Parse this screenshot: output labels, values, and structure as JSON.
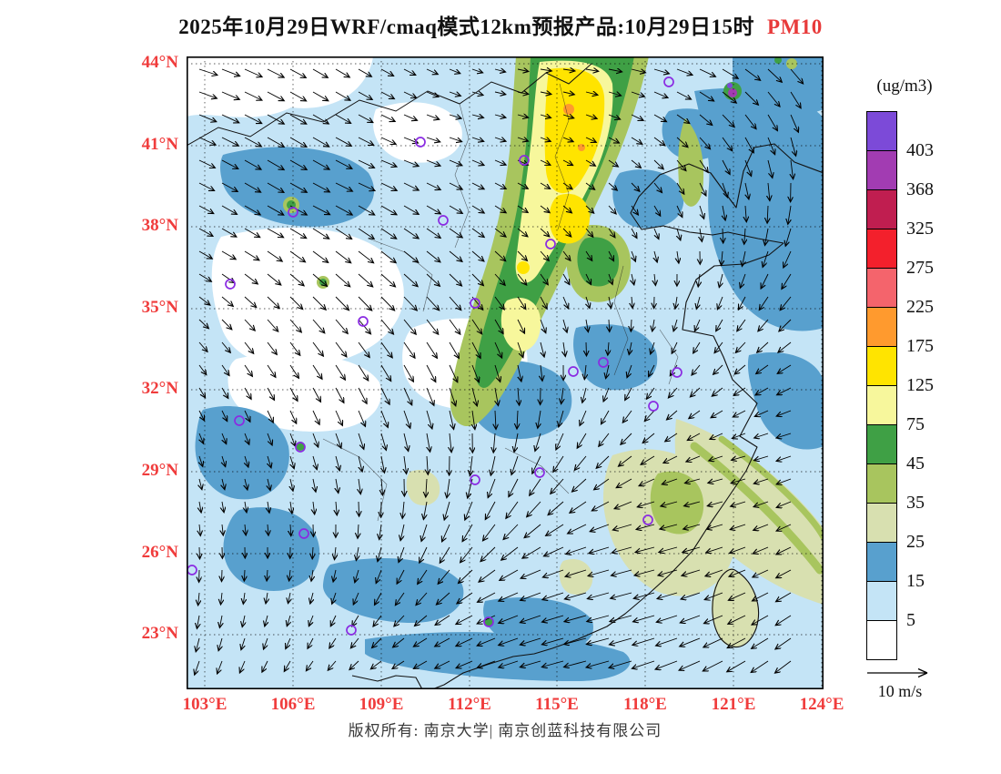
{
  "title": {
    "text": "2025年10月29日WRF/cmaq模式12km预报产品:10月29日15时",
    "species": "PM10"
  },
  "axes": {
    "lat_labels": [
      "44°N",
      "41°N",
      "38°N",
      "35°N",
      "32°N",
      "29°N",
      "26°N",
      "23°N"
    ],
    "lon_labels": [
      "103°E",
      "106°E",
      "109°E",
      "112°E",
      "115°E",
      "118°E",
      "121°E",
      "124°E"
    ],
    "label_color": "#f03c3c"
  },
  "colorbar": {
    "unit": "(ug/m3)",
    "tick_labels": [
      "403",
      "368",
      "325",
      "275",
      "225",
      "175",
      "125",
      "75",
      "45",
      "35",
      "25",
      "15",
      "5"
    ],
    "segment_colors_top_to_bottom": [
      "#7c4ad8",
      "#a23cb2",
      "#c01e50",
      "#f3202c",
      "#f4646c",
      "#ff9a2e",
      "#ffe400",
      "#f7f79c",
      "#3fa045",
      "#a8c55e",
      "#d8e0b0",
      "#58a0ce",
      "#c4e4f6",
      "#ffffff"
    ]
  },
  "wind_legend": {
    "label": "10 m/s"
  },
  "footer": {
    "text": "版权所有: 南京大学| 南京创蓝科技有限公司"
  },
  "map": {
    "field_name": "PM10 surface concentration with wind vectors",
    "marker_color": "#8a2be2",
    "station_markers": [
      [
        257,
        94
      ],
      [
        530,
        28
      ],
      [
        371,
        114
      ],
      [
        117,
        171
      ],
      [
        282,
        180
      ],
      [
        400,
        206
      ],
      [
        48,
        250
      ],
      [
        317,
        271
      ],
      [
        194,
        291
      ],
      [
        458,
        336
      ],
      [
        425,
        346
      ],
      [
        513,
        384
      ],
      [
        539,
        347
      ],
      [
        58,
        400
      ],
      [
        125,
        429
      ],
      [
        317,
        465
      ],
      [
        388,
        457
      ],
      [
        129,
        524
      ],
      [
        507,
        509
      ],
      [
        6,
        564
      ],
      [
        181,
        630
      ],
      [
        332,
        621
      ]
    ]
  }
}
